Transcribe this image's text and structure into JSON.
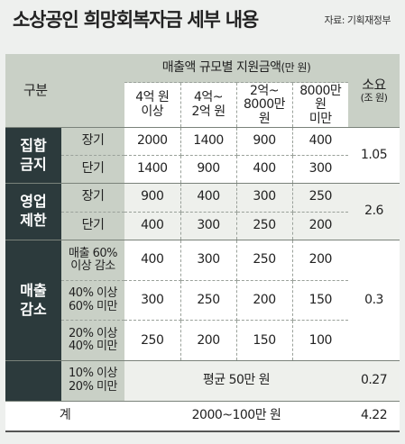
{
  "header": {
    "title": "소상공인 희망회복자금 세부 내용",
    "source": "자료: 기획재정부"
  },
  "table": {
    "col_group": "구분",
    "sales_header": "매출액 규모별 지원금액",
    "sales_unit": "(만 원)",
    "size_header": "소요",
    "size_unit": "(조 원)",
    "columns": [
      {
        "line1": "4억 원",
        "line2": "이상"
      },
      {
        "line1": "4억~",
        "line2": "2억 원"
      },
      {
        "line1": "2억~",
        "line2": "8000만 원"
      },
      {
        "line1": "8000만 원",
        "line2": "미만"
      }
    ],
    "groups": [
      {
        "label1": "집합",
        "label2": "금지",
        "total": "1.05",
        "rows": [
          {
            "sub1": "장기",
            "sub2": "",
            "values": [
              "2000",
              "1400",
              "900",
              "400"
            ]
          },
          {
            "sub1": "단기",
            "sub2": "",
            "values": [
              "1400",
              "900",
              "400",
              "300"
            ]
          }
        ]
      },
      {
        "label1": "영업",
        "label2": "제한",
        "total": "2.6",
        "rows": [
          {
            "sub1": "장기",
            "sub2": "",
            "values": [
              "900",
              "400",
              "300",
              "250"
            ]
          },
          {
            "sub1": "단기",
            "sub2": "",
            "values": [
              "400",
              "300",
              "250",
              "200"
            ]
          }
        ]
      },
      {
        "label1": "매출",
        "label2": "감소",
        "total": "0.3",
        "rows": [
          {
            "sub1": "매출 60%",
            "sub2": "이상 감소",
            "values": [
              "400",
              "300",
              "250",
              "200"
            ]
          },
          {
            "sub1": "40% 이상",
            "sub2": "60% 미만",
            "values": [
              "300",
              "250",
              "200",
              "150"
            ]
          },
          {
            "sub1": "20% 이상",
            "sub2": "40% 미만",
            "values": [
              "250",
              "200",
              "150",
              "100"
            ]
          }
        ],
        "extra": {
          "sub1": "10% 이상",
          "sub2": "20% 미만",
          "value": "평균 50만 원",
          "total": "0.27"
        }
      }
    ],
    "sum_row": {
      "label": "계",
      "value": "2000~100만 원",
      "total": "4.22"
    }
  }
}
